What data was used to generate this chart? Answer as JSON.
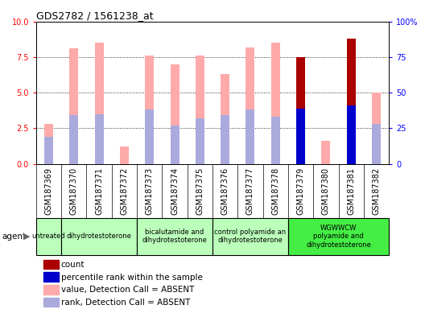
{
  "title": "GDS2782 / 1561238_at",
  "samples": [
    "GSM187369",
    "GSM187370",
    "GSM187371",
    "GSM187372",
    "GSM187373",
    "GSM187374",
    "GSM187375",
    "GSM187376",
    "GSM187377",
    "GSM187378",
    "GSM187379",
    "GSM187380",
    "GSM187381",
    "GSM187382"
  ],
  "value_absent": [
    2.8,
    8.1,
    8.5,
    1.2,
    7.6,
    7.0,
    7.6,
    6.3,
    8.2,
    8.5,
    0.0,
    1.6,
    0.0,
    5.0
  ],
  "rank_absent": [
    1.9,
    3.4,
    3.5,
    0.0,
    3.8,
    2.7,
    3.2,
    3.4,
    3.8,
    3.3,
    0.0,
    0.0,
    0.0,
    2.8
  ],
  "count_present": [
    0,
    0,
    0,
    0,
    0,
    0,
    0,
    0,
    0,
    0,
    7.5,
    0,
    8.8,
    0
  ],
  "percentile_present": [
    0,
    0,
    0,
    0,
    0,
    0,
    0,
    0,
    0,
    0,
    3.9,
    0,
    4.1,
    0
  ],
  "ylim_left": [
    0,
    10
  ],
  "ylim_right": [
    0,
    100
  ],
  "yticks_left": [
    0,
    2.5,
    5.0,
    7.5,
    10
  ],
  "yticks_right": [
    0,
    25,
    50,
    75,
    100
  ],
  "group_bounds": [
    {
      "label": "untreated",
      "start": 0,
      "end": 1,
      "color": "#bbffbb"
    },
    {
      "label": "dihydrotestoterone",
      "start": 1,
      "end": 4,
      "color": "#bbffbb"
    },
    {
      "label": "bicalutamide and\ndihydrotestoterone",
      "start": 4,
      "end": 7,
      "color": "#bbffbb"
    },
    {
      "label": "control polyamide an\ndihydrotestoterone",
      "start": 7,
      "end": 10,
      "color": "#bbffbb"
    },
    {
      "label": "WGWWCW\npolyamide and\ndihydrotestoterone",
      "start": 10,
      "end": 14,
      "color": "#44ee44"
    }
  ],
  "color_value_absent": "#ffaaaa",
  "color_rank_absent": "#aaaadd",
  "color_count": "#aa0000",
  "color_percentile": "#0000cc",
  "bar_width": 0.35,
  "title_fontsize": 9,
  "tick_fontsize": 7,
  "label_fontsize": 7.5,
  "bg_gray": "#d8d8d8"
}
